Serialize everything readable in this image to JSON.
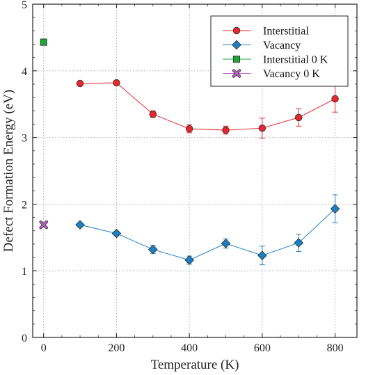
{
  "chart_data": {
    "type": "scatter",
    "xlabel": "Temperature (K)",
    "ylabel": "Defect Formation Energy (eV)",
    "xlim": [
      -30,
      860
    ],
    "ylim": [
      0,
      5
    ],
    "xticks": [
      0,
      200,
      400,
      600,
      800
    ],
    "yticks": [
      0,
      1,
      2,
      3,
      4,
      5
    ],
    "xtick_labels": [
      "0",
      "200",
      "400",
      "600",
      "800"
    ],
    "ytick_labels": [
      "0",
      "1",
      "2",
      "3",
      "4",
      "5"
    ],
    "grid": true,
    "legend_position": "top-right",
    "series": [
      {
        "name": "Interstitial",
        "marker": "circle",
        "color": "#e8262b",
        "line": true,
        "x": [
          100,
          200,
          300,
          400,
          500,
          600,
          700,
          800
        ],
        "y": [
          3.81,
          3.82,
          3.35,
          3.13,
          3.11,
          3.14,
          3.3,
          3.58
        ],
        "err": [
          0.0,
          0.0,
          0.05,
          0.06,
          0.06,
          0.15,
          0.13,
          0.2
        ]
      },
      {
        "name": "Vacancy",
        "marker": "diamond",
        "color": "#1b80c4",
        "line": true,
        "x": [
          100,
          200,
          300,
          400,
          500,
          600,
          700,
          800
        ],
        "y": [
          1.69,
          1.56,
          1.32,
          1.16,
          1.41,
          1.23,
          1.42,
          1.93
        ],
        "err": [
          0.0,
          0.0,
          0.06,
          0.06,
          0.07,
          0.14,
          0.13,
          0.21
        ]
      },
      {
        "name": "Interstitial 0 K",
        "marker": "square",
        "color": "#1fa637",
        "line": false,
        "x": [
          0
        ],
        "y": [
          4.43
        ],
        "err": [
          0
        ]
      },
      {
        "name": "Vacancy 0 K",
        "marker": "x",
        "color": "#b560c0",
        "line": false,
        "x": [
          0
        ],
        "y": [
          1.69
        ],
        "err": [
          0
        ]
      }
    ]
  }
}
